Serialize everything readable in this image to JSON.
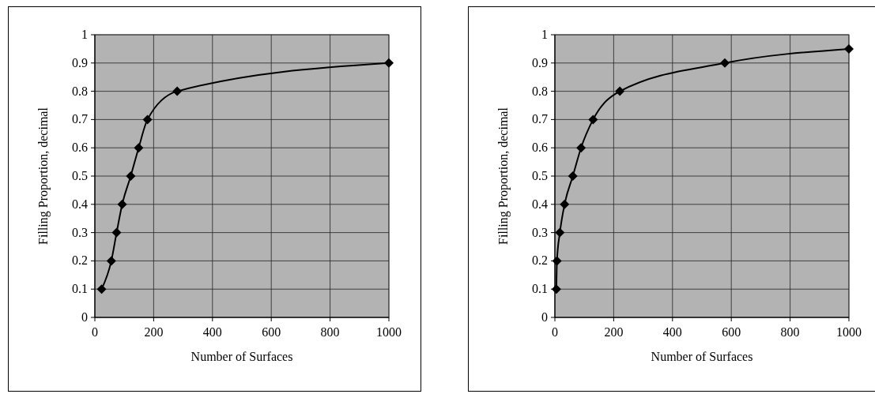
{
  "chart_data": [
    {
      "type": "line",
      "xlabel": "Number of Surfaces",
      "ylabel": "Filling Proportion, decimal",
      "x": [
        23,
        56,
        74,
        93,
        122,
        149,
        179,
        280,
        1000
      ],
      "series": [
        {
          "color": "#000000",
          "values": [
            0.1,
            0.2,
            0.3,
            0.4,
            0.5,
            0.6,
            0.7,
            0.8,
            0.9
          ]
        }
      ],
      "xlim": [
        0,
        1000
      ],
      "xticks": [
        0,
        200,
        400,
        600,
        800,
        1000
      ],
      "ylim": [
        0,
        1
      ],
      "yticks": [
        0,
        0.1,
        0.2,
        0.3,
        0.4,
        0.5,
        0.6,
        0.7,
        0.8,
        0.9,
        1
      ],
      "grid": true,
      "marker": "diamond",
      "line_style": "solid"
    },
    {
      "type": "line",
      "xlabel": "Number of Surfaces",
      "ylabel": "Filling Proportion, decimal",
      "x": [
        5,
        7,
        17,
        33,
        61,
        89,
        130,
        221,
        578,
        1000
      ],
      "series": [
        {
          "color": "#000000",
          "values": [
            0.1,
            0.2,
            0.3,
            0.4,
            0.5,
            0.6,
            0.7,
            0.8,
            0.9,
            0.95
          ]
        }
      ],
      "xlim": [
        0,
        1000
      ],
      "xticks": [
        0,
        200,
        400,
        600,
        800,
        1000
      ],
      "ylim": [
        0,
        1
      ],
      "yticks": [
        0,
        0.1,
        0.2,
        0.3,
        0.4,
        0.5,
        0.6,
        0.7,
        0.8,
        0.9,
        1
      ],
      "grid": true,
      "marker": "diamond",
      "line_style": "solid"
    }
  ]
}
